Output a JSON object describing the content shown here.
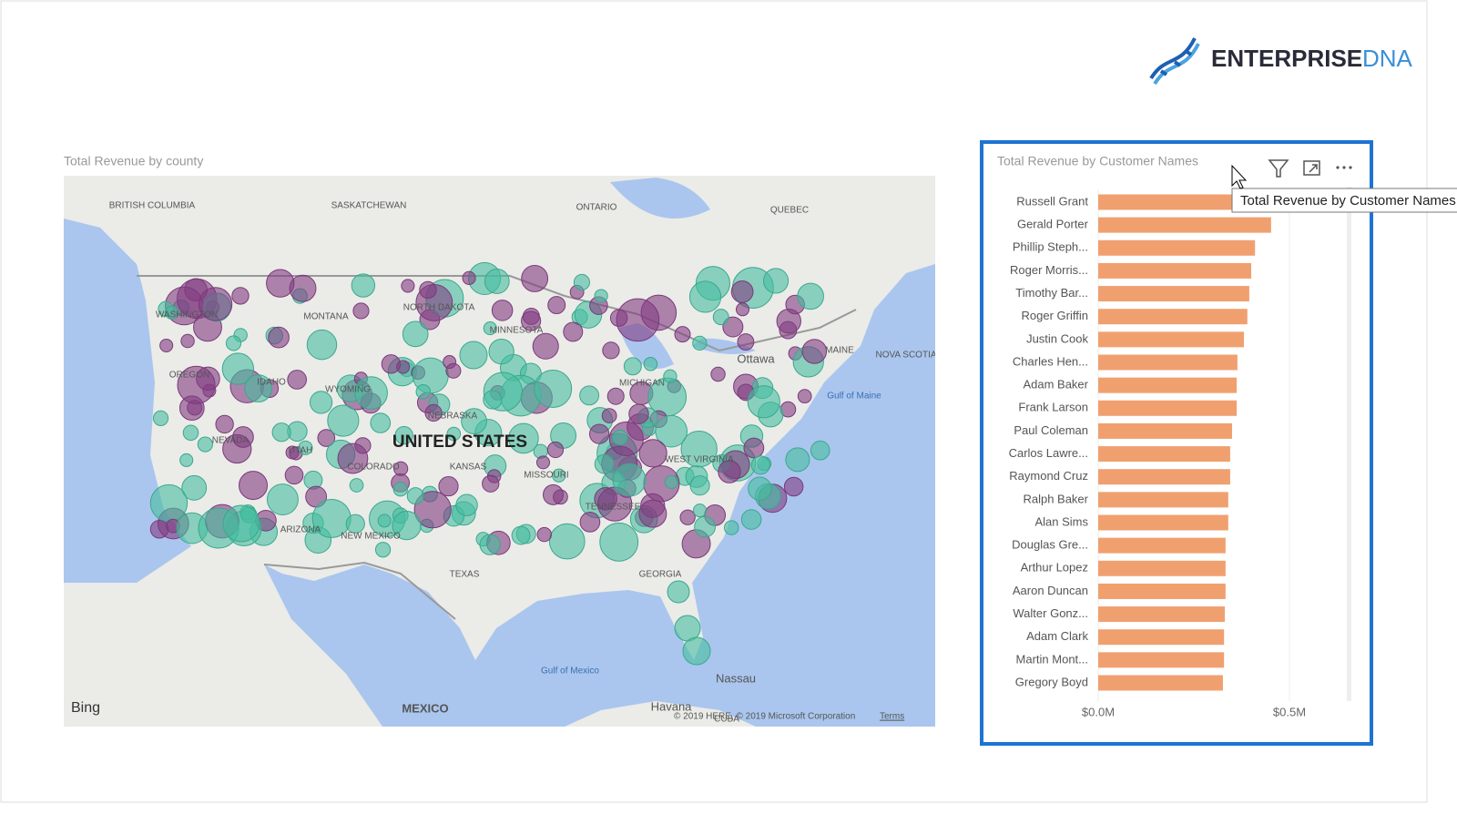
{
  "header": {
    "logo_word": "ENTERPRISE",
    "logo_accent": "DNA"
  },
  "map": {
    "title": "Total Revenue by county",
    "labels": [
      "BRITISH COLUMBIA",
      "SASKATCHEWAN",
      "ONTARIO",
      "QUEBEC",
      "WASHINGTON",
      "MONTANA",
      "NORTH DAKOTA",
      "MINNESOTA",
      "OREGON",
      "IDAHO",
      "WYOMING",
      "NEBRASKA",
      "NEVADA",
      "UTAH",
      "COLORADO",
      "KANSAS",
      "UNITED STATES",
      "NEW MEXICO",
      "ARIZONA",
      "TEXAS",
      "MISSOURI",
      "TENNESSEE",
      "GEORGIA",
      "MICHIGAN",
      "WEST VIRGINIA",
      "MAINE",
      "Ottawa",
      "Gulf of Maine",
      "NOVA SCOTIA",
      "Gulf of Mexico",
      "MEXICO",
      "Havana",
      "Nassau",
      "CUBA"
    ],
    "attribution": "Bing",
    "copyright": "© 2019 HERE, © 2019 Microsoft Corporation",
    "terms": "Terms"
  },
  "chart_data": {
    "type": "bar",
    "orientation": "horizontal",
    "title": "Total Revenue by Customer Names",
    "tooltip": "Total Revenue by Customer Names",
    "categories": [
      "Russell Grant",
      "Gerald Porter",
      "Phillip Steph...",
      "Roger Morris...",
      "Timothy Bar...",
      "Roger Griffin",
      "Justin Cook",
      "Charles Hen...",
      "Adam Baker",
      "Frank Larson",
      "Paul Coleman",
      "Carlos Lawre...",
      "Raymond Cruz",
      "Ralph Baker",
      "Alan Sims",
      "Douglas Gre...",
      "Arthur Lopez",
      "Aaron Duncan",
      "Walter Gonz...",
      "Adam Clark",
      "Martin Mont...",
      "Gregory Boyd"
    ],
    "values": [
      470000,
      452000,
      410000,
      400000,
      395000,
      390000,
      381000,
      364000,
      362000,
      362000,
      350000,
      345000,
      345000,
      340000,
      340000,
      333000,
      333000,
      333000,
      331000,
      329000,
      329000,
      326000
    ],
    "color": "#f0a06f",
    "xlim": [
      0,
      650000
    ],
    "xticks": [
      {
        "value": 0,
        "label": "$0.0M"
      },
      {
        "value": 500000,
        "label": "$0.5M"
      }
    ]
  }
}
